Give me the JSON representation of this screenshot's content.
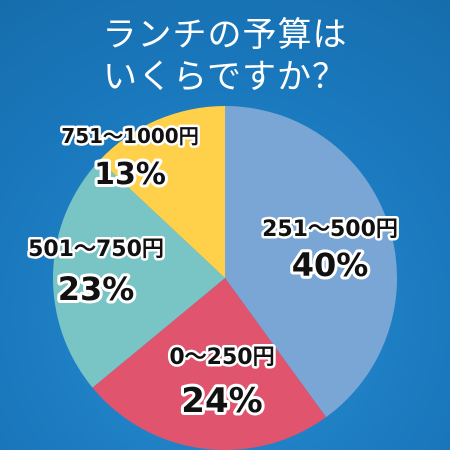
{
  "title": {
    "line1": "ランチの予算は",
    "line2": "いくらですか？"
  },
  "chart_data": {
    "type": "pie",
    "title": "ランチの予算は いくらですか？",
    "start": "12 o'clock",
    "direction": "clockwise",
    "slices": [
      {
        "label": "251～500円",
        "value": 40,
        "value_label": "40%",
        "color": "#7aa6d6"
      },
      {
        "label": "0～250円",
        "value": 24,
        "value_label": "24%",
        "color": "#e0546e"
      },
      {
        "label": "501～750円",
        "value": 23,
        "value_label": "23%",
        "color": "#79c4c4"
      },
      {
        "label": "751～1000円",
        "value": 13,
        "value_label": "13%",
        "color": "#ffd04a"
      }
    ]
  }
}
